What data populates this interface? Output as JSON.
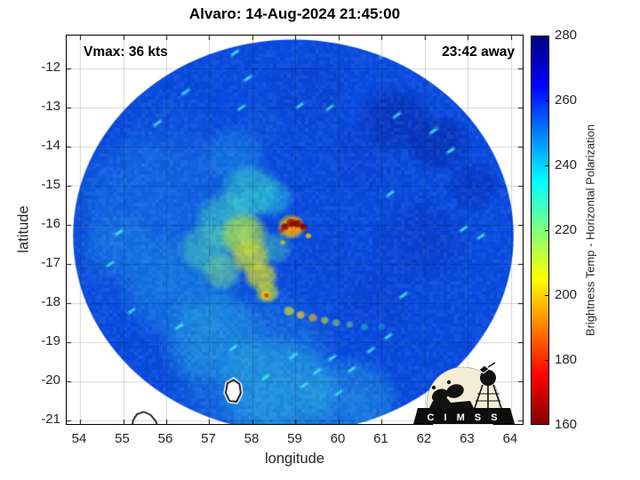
{
  "chart_data": {
    "type": "heatmap",
    "title": "Alvaro: 14-Aug-2024 21:45:00",
    "annotations": {
      "vmax": "Vmax: 36 kts",
      "away": "23:42 away"
    },
    "axes": {
      "xlabel": "longitude",
      "ylabel": "latitude",
      "xticks": [
        54,
        55,
        56,
        57,
        58,
        59,
        60,
        61,
        62,
        63,
        64
      ],
      "yticks": [
        -12,
        -13,
        -14,
        -15,
        -16,
        -17,
        -18,
        -19,
        -20,
        -21
      ],
      "xlim": [
        53.69,
        64.27
      ],
      "ylim": [
        -21.09,
        -11.16
      ],
      "grid": true
    },
    "colorbar": {
      "label": "Brightness Temp - Horizontal Polarization",
      "ticks": [
        280,
        260,
        240,
        220,
        200,
        180,
        160
      ],
      "min": 160,
      "max": 280,
      "stops": [
        [
          160,
          "#800000"
        ],
        [
          175,
          "#ff0000"
        ],
        [
          205,
          "#ffff00"
        ],
        [
          235,
          "#00ffff"
        ],
        [
          265,
          "#0000ff"
        ],
        [
          280,
          "#000080"
        ]
      ]
    },
    "storm": {
      "name": "Alvaro",
      "vmax_kts": 36,
      "center_lon": 59.0,
      "center_lat": -16.1
    },
    "swath": {
      "center": [
        58.95,
        -16.28
      ],
      "radius_deg": [
        5.11,
        5.02
      ],
      "base_color": "#0a4ce0"
    },
    "blobs": [
      [
        56.0,
        -16.0,
        2.6,
        "#1c84e4",
        0.33
      ],
      [
        58.0,
        -19.6,
        2.2,
        "#28b2e0",
        0.33
      ],
      [
        55.6,
        -15.2,
        1.8,
        "#1773e8",
        0.4
      ],
      [
        56.1,
        -13.9,
        1.3,
        "#1465dd",
        0.35
      ],
      [
        56.3,
        -17.6,
        1.5,
        "#1e9ae6",
        0.45
      ],
      [
        57.1,
        -18.9,
        1.3,
        "#2ab4e2",
        0.45
      ],
      [
        58.6,
        -20.2,
        1.5,
        "#30c4e2",
        0.5
      ],
      [
        60.3,
        -20.5,
        1.2,
        "#34c8e4",
        0.4
      ],
      [
        54.9,
        -16.5,
        0.9,
        "#2098e8",
        0.35
      ],
      [
        61.3,
        -13.3,
        0.9,
        "#04229e",
        0.5
      ],
      [
        62.3,
        -13.9,
        0.8,
        "#04209a",
        0.5
      ],
      [
        63.1,
        -15.0,
        0.7,
        "#0628b0",
        0.45
      ],
      [
        61.9,
        -16.4,
        1.2,
        "#0834bc",
        0.4
      ],
      [
        60.6,
        -14.2,
        1.0,
        "#0a3cc4",
        0.35
      ],
      [
        59.3,
        -12.6,
        1.0,
        "#0a40c8",
        0.35
      ],
      [
        57.6,
        -14.2,
        0.8,
        "#22a8e8",
        0.4
      ],
      [
        58.25,
        -13.5,
        0.7,
        "#1460d8",
        0.3
      ],
      [
        60.9,
        -17.9,
        1.0,
        "#0a3cc8",
        0.35
      ],
      [
        59.8,
        -16.8,
        0.8,
        "#0c46cc",
        0.35
      ],
      [
        57.95,
        -15.15,
        0.75,
        "#38d2cc",
        0.7
      ],
      [
        57.4,
        -15.9,
        0.8,
        "#3ed6c4",
        0.65
      ],
      [
        56.95,
        -16.6,
        0.7,
        "#52d8b0",
        0.55
      ],
      [
        58.45,
        -15.3,
        0.55,
        "#2cc2da",
        0.6
      ],
      [
        58.5,
        -16.6,
        0.45,
        "#4cd0b4",
        0.5
      ],
      [
        57.8,
        -16.25,
        0.6,
        "#b4e046",
        0.85
      ],
      [
        57.95,
        -16.8,
        0.5,
        "#cfe032",
        0.85
      ],
      [
        58.2,
        -17.3,
        0.42,
        "#d8de2c",
        0.85
      ],
      [
        58.35,
        -17.72,
        0.3,
        "#c4dc38",
        0.85
      ],
      [
        57.3,
        -17.2,
        0.5,
        "#7ce08c",
        0.6
      ],
      [
        58.9,
        -16.05,
        0.34,
        "#ffd000",
        0.9
      ],
      [
        58.95,
        -16.02,
        0.25,
        "#ff8c00",
        0.95
      ],
      [
        58.75,
        -16.05,
        0.11,
        "#8a0000",
        1
      ],
      [
        58.9,
        -15.95,
        0.13,
        "#8a0000",
        1
      ],
      [
        59.05,
        -15.97,
        0.12,
        "#8a0000",
        1
      ],
      [
        59.18,
        -16.05,
        0.1,
        "#8a0000",
        1
      ],
      [
        58.68,
        -16.15,
        0.07,
        "#d82000",
        0.95
      ],
      [
        59.22,
        -16.12,
        0.06,
        "#d82000",
        0.9
      ],
      [
        59.3,
        -16.28,
        0.08,
        "#ffd800",
        0.9
      ],
      [
        58.7,
        -16.45,
        0.07,
        "#ffc800",
        0.85
      ],
      [
        58.32,
        -17.8,
        0.14,
        "#ffc800",
        0.9
      ],
      [
        58.32,
        -17.8,
        0.07,
        "#e03000",
        0.95
      ],
      [
        58.85,
        -18.2,
        0.14,
        "#cede30",
        0.85
      ],
      [
        59.12,
        -18.3,
        0.12,
        "#eed826",
        0.8
      ],
      [
        59.4,
        -18.38,
        0.12,
        "#ffb400",
        0.75
      ],
      [
        59.68,
        -18.44,
        0.11,
        "#d8da2e",
        0.7
      ],
      [
        59.95,
        -18.5,
        0.11,
        "#a8da52",
        0.65
      ],
      [
        60.25,
        -18.55,
        0.1,
        "#70d493",
        0.6
      ],
      [
        60.6,
        -18.6,
        0.1,
        "#40c8c0",
        0.55
      ],
      [
        61.0,
        -18.6,
        0.1,
        "#30bcd8",
        0.5
      ]
    ],
    "speckle_style": {
      "color": "#45e2ee",
      "alpha": 0.85,
      "len_deg": 0.16,
      "wid_deg": 0.055,
      "rot_deg": -35
    },
    "speckles": [
      [
        56.74,
        -11.7
      ],
      [
        57.6,
        -11.6
      ],
      [
        61.05,
        -11.65
      ],
      [
        57.9,
        -12.25
      ],
      [
        61.35,
        -13.2
      ],
      [
        57.75,
        -13.0
      ],
      [
        59.1,
        -12.95
      ],
      [
        59.8,
        -13.0
      ],
      [
        56.45,
        -12.6
      ],
      [
        55.8,
        -13.4
      ],
      [
        54.9,
        -16.2
      ],
      [
        54.7,
        -17.0
      ],
      [
        55.2,
        -18.2
      ],
      [
        61.2,
        -15.2
      ],
      [
        62.9,
        -16.1
      ],
      [
        63.3,
        -16.3
      ],
      [
        62.2,
        -13.6
      ],
      [
        62.6,
        -14.1
      ],
      [
        57.55,
        -19.15
      ],
      [
        58.95,
        -19.35
      ],
      [
        59.5,
        -19.75
      ],
      [
        59.85,
        -19.4
      ],
      [
        60.3,
        -19.7
      ],
      [
        60.75,
        -19.2
      ],
      [
        61.15,
        -18.85
      ],
      [
        59.2,
        -20.1
      ],
      [
        58.3,
        -19.9
      ],
      [
        60.0,
        -20.3
      ],
      [
        61.5,
        -17.8
      ],
      [
        56.3,
        -18.6
      ]
    ],
    "islands": {
      "mauritius": [
        [
          57.38,
          -20.3
        ],
        [
          57.42,
          -20.05
        ],
        [
          57.56,
          -19.96
        ],
        [
          57.7,
          -20.07
        ],
        [
          57.73,
          -20.3
        ],
        [
          57.63,
          -20.52
        ],
        [
          57.47,
          -20.5
        ]
      ],
      "reunion": [
        [
          55.2,
          -21.25
        ],
        [
          55.23,
          -21.0
        ],
        [
          55.32,
          -20.84
        ],
        [
          55.48,
          -20.78
        ],
        [
          55.64,
          -20.86
        ],
        [
          55.76,
          -21.02
        ],
        [
          55.83,
          -21.25
        ]
      ]
    },
    "logo_text": "C I M S S",
    "grid_color": "rgba(0,0,0,0.16)"
  }
}
